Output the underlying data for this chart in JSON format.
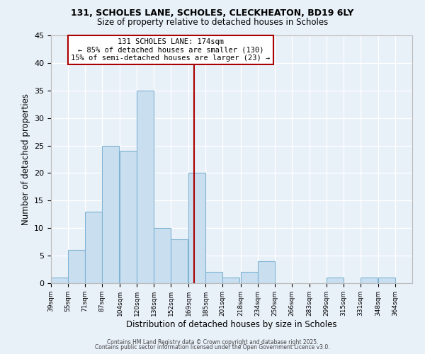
{
  "title1": "131, SCHOLES LANE, SCHOLES, CLECKHEATON, BD19 6LY",
  "title2": "Size of property relative to detached houses in Scholes",
  "xlabel": "Distribution of detached houses by size in Scholes",
  "ylabel": "Number of detached properties",
  "bin_labels": [
    "39sqm",
    "55sqm",
    "71sqm",
    "87sqm",
    "104sqm",
    "120sqm",
    "136sqm",
    "152sqm",
    "169sqm",
    "185sqm",
    "201sqm",
    "218sqm",
    "234sqm",
    "250sqm",
    "266sqm",
    "283sqm",
    "299sqm",
    "315sqm",
    "331sqm",
    "348sqm",
    "364sqm"
  ],
  "bin_edges": [
    39,
    55,
    71,
    87,
    104,
    120,
    136,
    152,
    169,
    185,
    201,
    218,
    234,
    250,
    266,
    283,
    299,
    315,
    331,
    348,
    364
  ],
  "bar_heights": [
    1,
    6,
    13,
    25,
    24,
    35,
    10,
    8,
    20,
    2,
    1,
    2,
    4,
    0,
    0,
    0,
    1,
    0,
    1,
    1,
    0
  ],
  "bar_color": "#c9dff0",
  "bar_edge_color": "#7fb3d3",
  "bg_color": "#e8f0f8",
  "grid_color": "#ffffff",
  "vline_x": 174,
  "vline_color": "#aa0000",
  "annotation_text": "131 SCHOLES LANE: 174sqm\n← 85% of detached houses are smaller (130)\n15% of semi-detached houses are larger (23) →",
  "annotation_box_color": "#ffffff",
  "annotation_box_edge": "#aa0000",
  "ylim": [
    0,
    45
  ],
  "yticks": [
    0,
    5,
    10,
    15,
    20,
    25,
    30,
    35,
    40,
    45
  ],
  "footer1": "Contains HM Land Registry data © Crown copyright and database right 2025.",
  "footer2": "Contains public sector information licensed under the Open Government Licence v3.0."
}
